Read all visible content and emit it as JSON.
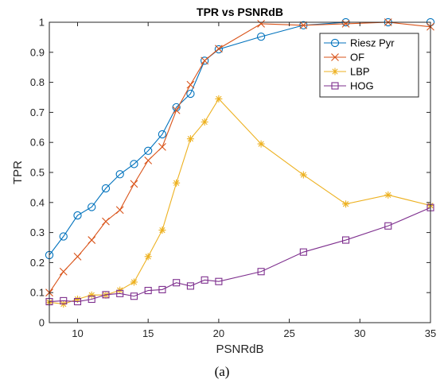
{
  "caption": "(a)",
  "chart_data": {
    "type": "line",
    "title": "TPR vs PSNRdB",
    "xlabel": "PSNRdB",
    "ylabel": "TPR",
    "xlim": [
      8,
      35
    ],
    "ylim": [
      0,
      1
    ],
    "xticks": [
      10,
      15,
      20,
      25,
      30,
      35
    ],
    "yticks": [
      0,
      0.1,
      0.2,
      0.3,
      0.4,
      0.5,
      0.6,
      0.7,
      0.8,
      0.9,
      1
    ],
    "grid": false,
    "legend_position": "top-right",
    "series": [
      {
        "name": "Riesz Pyr",
        "color": "#0072bd",
        "marker": "circle",
        "x": [
          8,
          9,
          10,
          11,
          12,
          13,
          14,
          15,
          16,
          17,
          18,
          19,
          20,
          23,
          26,
          29,
          32,
          35
        ],
        "y": [
          0.225,
          0.287,
          0.357,
          0.385,
          0.447,
          0.494,
          0.528,
          0.572,
          0.627,
          0.717,
          0.762,
          0.872,
          0.91,
          0.952,
          0.99,
          1.0,
          1.0,
          1.0
        ]
      },
      {
        "name": "OF",
        "color": "#d95319",
        "marker": "x",
        "x": [
          8,
          9,
          10,
          11,
          12,
          13,
          14,
          15,
          16,
          17,
          18,
          19,
          20,
          23,
          26,
          29,
          32,
          35
        ],
        "y": [
          0.1,
          0.17,
          0.22,
          0.275,
          0.337,
          0.375,
          0.462,
          0.54,
          0.585,
          0.707,
          0.792,
          0.872,
          0.912,
          0.995,
          0.99,
          0.995,
          1.0,
          0.985
        ]
      },
      {
        "name": "LBP",
        "color": "#edb120",
        "marker": "asterisk",
        "x": [
          8,
          9,
          10,
          11,
          12,
          13,
          14,
          15,
          16,
          17,
          18,
          19,
          20,
          23,
          26,
          29,
          32,
          35
        ],
        "y": [
          0.068,
          0.062,
          0.078,
          0.092,
          0.092,
          0.108,
          0.135,
          0.22,
          0.308,
          0.465,
          0.612,
          0.668,
          0.745,
          0.595,
          0.492,
          0.395,
          0.425,
          0.39
        ]
      },
      {
        "name": "HOG",
        "color": "#7e2f8e",
        "marker": "square",
        "x": [
          8,
          9,
          10,
          11,
          12,
          13,
          14,
          15,
          16,
          17,
          18,
          19,
          20,
          23,
          26,
          29,
          32,
          35
        ],
        "y": [
          0.07,
          0.073,
          0.07,
          0.078,
          0.093,
          0.097,
          0.088,
          0.107,
          0.11,
          0.133,
          0.122,
          0.142,
          0.137,
          0.17,
          0.235,
          0.275,
          0.322,
          0.383
        ]
      }
    ]
  }
}
